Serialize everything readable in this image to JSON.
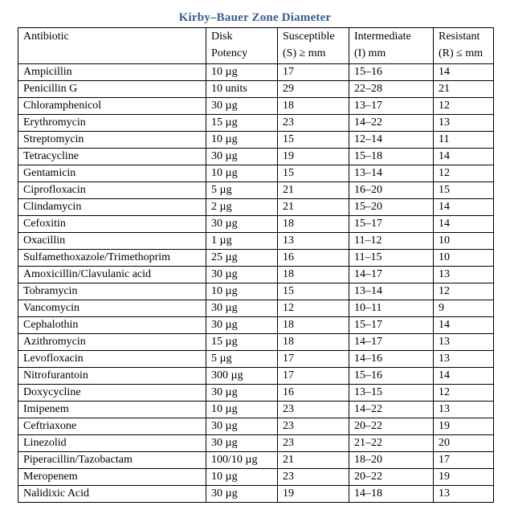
{
  "page": {
    "title": "Kirby–Bauer Zone Diameter",
    "title_color": "#365F91",
    "border_color": "#000000",
    "background_color": "#ffffff"
  },
  "table": {
    "column_keys": [
      "antibiotic",
      "disk-potency",
      "susceptible",
      "intermediate",
      "resistant"
    ],
    "columns": [
      {
        "line1": "Antibiotic",
        "line2": ""
      },
      {
        "line1": "Disk",
        "line2": "Potency"
      },
      {
        "line1": "Susceptible",
        "line2": "(S) ≥ mm"
      },
      {
        "line1": "Intermediate",
        "line2": "(I) mm"
      },
      {
        "line1": "Resistant",
        "line2": "(R) ≤ mm"
      }
    ],
    "rows": [
      [
        "Ampicillin",
        "10 µg",
        "17",
        "15–16",
        "14"
      ],
      [
        "Penicillin G",
        "10 units",
        "29",
        "22–28",
        "21"
      ],
      [
        "Chloramphenicol",
        "30 µg",
        "18",
        "13–17",
        "12"
      ],
      [
        "Erythromycin",
        "15 µg",
        "23",
        "14–22",
        "13"
      ],
      [
        "Streptomycin",
        "10 µg",
        "15",
        "12–14",
        "11"
      ],
      [
        "Tetracycline",
        "30 µg",
        "19",
        "15–18",
        "14"
      ],
      [
        "Gentamicin",
        "10 µg",
        "15",
        "13–14",
        "12"
      ],
      [
        "Ciprofloxacin",
        "5 µg",
        "21",
        "16–20",
        "15"
      ],
      [
        "Clindamycin",
        "2 µg",
        "21",
        "15–20",
        "14"
      ],
      [
        "Cefoxitin",
        "30 µg",
        "18",
        "15–17",
        "14"
      ],
      [
        "Oxacillin",
        "1 µg",
        "13",
        "11–12",
        "10"
      ],
      [
        "Sulfamethoxazole/Trimethoprim",
        "25 µg",
        "16",
        "11–15",
        "10"
      ],
      [
        "Amoxicillin/Clavulanic acid",
        "30 µg",
        "18",
        "14–17",
        "13"
      ],
      [
        "Tobramycin",
        "10 µg",
        "15",
        "13–14",
        "12"
      ],
      [
        "Vancomycin",
        "30 µg",
        "12",
        "10–11",
        "9"
      ],
      [
        "Cephalothin",
        "30 µg",
        "18",
        "15–17",
        "14"
      ],
      [
        "Azithromycin",
        "15 µg",
        "18",
        "14–17",
        "13"
      ],
      [
        "Levofloxacin",
        "5 µg",
        "17",
        "14–16",
        "13"
      ],
      [
        "Nitrofurantoin",
        "300 µg",
        "17",
        "15–16",
        "14"
      ],
      [
        "Doxycycline",
        "30 µg",
        "16",
        "13–15",
        "12"
      ],
      [
        "Imipenem",
        "10 µg",
        "23",
        "14–22",
        "13"
      ],
      [
        "Ceftriaxone",
        "30 µg",
        "23",
        "20–22",
        "19"
      ],
      [
        "Linezolid",
        "30 µg",
        "23",
        "21–22",
        "20"
      ],
      [
        "Piperacillin/Tazobactam",
        "100/10 µg",
        "21",
        "18–20",
        "17"
      ],
      [
        "Meropenem",
        "10 µg",
        "23",
        "20–22",
        "19"
      ],
      [
        "Nalidixic Acid",
        "30 µg",
        "19",
        "14–18",
        "13"
      ]
    ]
  }
}
